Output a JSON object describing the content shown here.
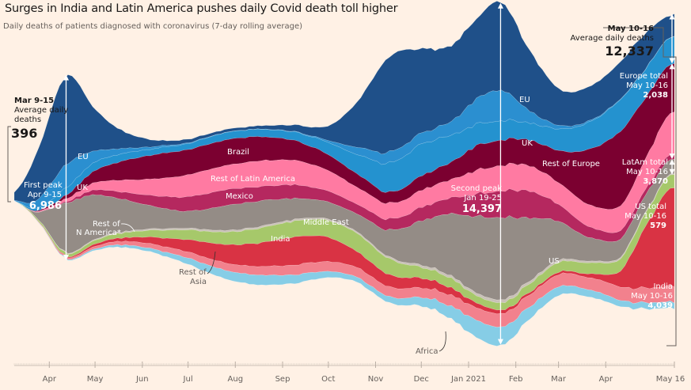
{
  "chart_data": {
    "type": "area",
    "subtype": "streamgraph",
    "title": "Surges in India and Latin America pushes daily Covid death toll higher",
    "subtitle": "Daily deaths of patients diagnosed with coronavirus (7-day rolling average)",
    "xlabel": "",
    "ylabel": "Daily deaths",
    "x_ticks": [
      "Apr",
      "May",
      "Jun",
      "Jul",
      "Aug",
      "Sep",
      "Oct",
      "Nov",
      "Dec",
      "Jan 2021",
      "Feb",
      "Mar",
      "Apr",
      "May 16"
    ],
    "x": [
      "2020-03-09",
      "2020-03-23",
      "2020-04-12",
      "2020-05-01",
      "2020-05-20",
      "2020-06-10",
      "2020-07-01",
      "2020-07-25",
      "2020-08-15",
      "2020-09-10",
      "2020-10-01",
      "2020-10-20",
      "2020-11-10",
      "2020-12-01",
      "2020-12-20",
      "2021-01-05",
      "2021-01-22",
      "2021-02-10",
      "2021-03-01",
      "2021-03-20",
      "2021-04-10",
      "2021-04-25",
      "2021-05-13"
    ],
    "center_offset": [
      200,
      600,
      1400,
      900,
      500,
      200,
      0,
      -100,
      -150,
      -100,
      0,
      400,
      900,
      1000,
      800,
      950,
      1150,
      700,
      400,
      400,
      700,
      1200,
      1650
    ],
    "series": [
      {
        "name": "EU",
        "color": "#1f5089",
        "values": [
          330,
          1900,
          3600,
          1700,
          700,
          250,
          150,
          120,
          130,
          280,
          600,
          1900,
          3900,
          3500,
          3100,
          3300,
          3600,
          2500,
          1500,
          1400,
          1500,
          1500,
          900
        ]
      },
      {
        "name": "UK",
        "color": "#2b8fd0",
        "values": [
          20,
          300,
          950,
          450,
          200,
          80,
          30,
          12,
          10,
          20,
          80,
          300,
          450,
          450,
          550,
          1000,
          1250,
          500,
          150,
          60,
          25,
          15,
          10
        ]
      },
      {
        "name": "Rest of Europe",
        "color": "#2492cf",
        "values": [
          10,
          100,
          300,
          350,
          300,
          250,
          250,
          300,
          300,
          350,
          500,
          800,
          1200,
          1300,
          1100,
          900,
          800,
          700,
          900,
          1100,
          1300,
          1200,
          1100
        ]
      },
      {
        "name": "Brazil",
        "color": "#7b0030",
        "values": [
          1,
          30,
          150,
          500,
          800,
          1000,
          1050,
          1050,
          1000,
          800,
          650,
          550,
          450,
          600,
          700,
          1000,
          1050,
          1050,
          1300,
          2200,
          3000,
          2600,
          2000
        ]
      },
      {
        "name": "Rest of Latin America",
        "color": "#ff7aa2",
        "values": [
          2,
          20,
          120,
          300,
          500,
          700,
          900,
          1000,
          1050,
          1000,
          850,
          700,
          650,
          700,
          750,
          950,
          1050,
          1050,
          900,
          900,
          1000,
          1200,
          1700
        ]
      },
      {
        "name": "Mexico",
        "color": "#b5285f",
        "values": [
          0,
          5,
          50,
          200,
          300,
          450,
          600,
          650,
          600,
          550,
          450,
          400,
          450,
          550,
          650,
          900,
          1100,
          1100,
          700,
          450,
          350,
          250,
          200
        ]
      },
      {
        "name": "US",
        "color": "#948c86",
        "values": [
          5,
          200,
          2000,
          1800,
          1300,
          900,
          700,
          1000,
          1050,
          850,
          700,
          750,
          1100,
          1800,
          2500,
          3100,
          3400,
          2600,
          1600,
          1000,
          750,
          700,
          600
        ]
      },
      {
        "name": "Rest of N America",
        "color": "#c9c1b8",
        "values": [
          0,
          5,
          30,
          40,
          50,
          60,
          70,
          70,
          70,
          70,
          60,
          60,
          70,
          90,
          100,
          110,
          120,
          110,
          90,
          70,
          60,
          50,
          40
        ]
      },
      {
        "name": "Middle East",
        "color": "#a6c86a",
        "values": [
          5,
          60,
          120,
          150,
          200,
          300,
          400,
          500,
          600,
          650,
          700,
          750,
          650,
          450,
          400,
          300,
          300,
          350,
          400,
          450,
          500,
          550,
          550
        ]
      },
      {
        "name": "India",
        "color": "#d93344",
        "values": [
          0,
          2,
          30,
          100,
          150,
          300,
          500,
          750,
          950,
          1150,
          1000,
          650,
          500,
          400,
          300,
          200,
          150,
          100,
          100,
          150,
          600,
          2300,
          4000
        ]
      },
      {
        "name": "Rest of Asia",
        "color": "#f2818d",
        "values": [
          3,
          20,
          60,
          100,
          150,
          200,
          250,
          300,
          350,
          400,
          400,
          400,
          400,
          400,
          450,
          500,
          550,
          500,
          500,
          500,
          550,
          600,
          650
        ]
      },
      {
        "name": "Africa",
        "color": "#86cde6",
        "values": [
          1,
          10,
          30,
          60,
          100,
          150,
          250,
          350,
          400,
          350,
          250,
          200,
          250,
          350,
          500,
          700,
          750,
          500,
          350,
          300,
          250,
          250,
          250
        ]
      }
    ],
    "annotations": {
      "start": {
        "date": "Mar 9-15",
        "label": "Average daily deaths",
        "value": "396"
      },
      "first_peak": {
        "label": "First peak",
        "date": "Apr 9-15",
        "value": "6,986"
      },
      "second_peak": {
        "label": "Second peak",
        "date": "Jan 19-25",
        "value": "14,397"
      },
      "end": {
        "date": "May 10-16",
        "label": "Average daily deaths",
        "value": "12,337"
      },
      "europe_total": {
        "label": "Europe total",
        "date": "May 10-16",
        "value": "2,038"
      },
      "latam_total": {
        "label": "LatAm total",
        "date": "May 10-16",
        "value": "3,870"
      },
      "us_total": {
        "label": "US total",
        "date": "May 10-16",
        "value": "579"
      },
      "india": {
        "label": "India",
        "date": "May 10-16",
        "value": "4,039"
      }
    },
    "layer_labels": {
      "eu_left": "EU",
      "uk_left": "UK",
      "brazil": "Brazil",
      "rest_latam": "Rest of Latin America",
      "mexico": "Mexico",
      "rest_n_america": "Rest of\nN America*",
      "middle_east": "Middle East",
      "india": "India",
      "rest_asia": "Rest of\nAsia",
      "africa": "Africa",
      "eu_right": "EU",
      "uk_right": "UK",
      "rest_europe": "Rest of Europe",
      "us": "US"
    },
    "grid": false,
    "legend": "none (inline labels)"
  }
}
